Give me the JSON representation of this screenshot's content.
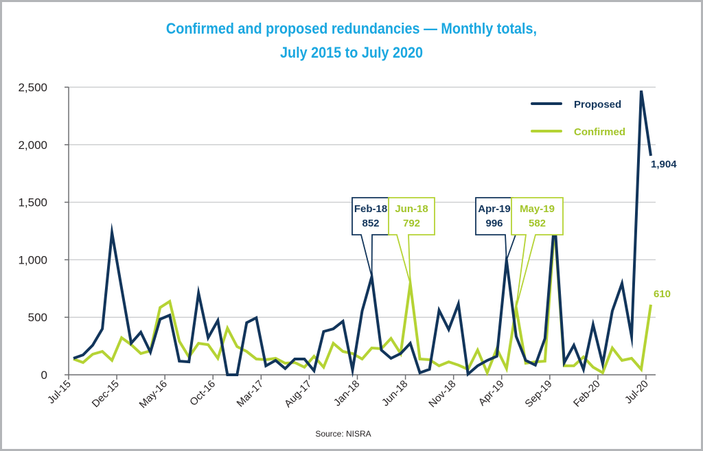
{
  "chart_data": {
    "type": "line",
    "title": "Confirmed and proposed redundancies — Monthly totals,",
    "subtitle": "July 2015 to July 2020",
    "xlabel": "",
    "ylabel": "",
    "ylim": [
      0,
      2500
    ],
    "yticks": [
      0,
      500,
      1000,
      1500,
      2000,
      2500
    ],
    "ytick_labels": [
      "0",
      "500",
      "1,000",
      "1,500",
      "2,000",
      "2,500"
    ],
    "xtick_labels": [
      "Jul-15",
      "Dec-15",
      "May-16",
      "Oct-16",
      "Mar-17",
      "Aug-17",
      "Jan-18",
      "Jun-18",
      "Nov-18",
      "Apr-19",
      "Sep-19",
      "Feb-20",
      "Jul-20"
    ],
    "grid": true,
    "legend": "top-right",
    "x": [
      "Jul-15",
      "Aug-15",
      "Sep-15",
      "Oct-15",
      "Nov-15",
      "Dec-15",
      "Jan-16",
      "Feb-16",
      "Mar-16",
      "Apr-16",
      "May-16",
      "Jun-16",
      "Jul-16",
      "Aug-16",
      "Sep-16",
      "Oct-16",
      "Nov-16",
      "Dec-16",
      "Jan-17",
      "Feb-17",
      "Mar-17",
      "Apr-17",
      "May-17",
      "Jun-17",
      "Jul-17",
      "Aug-17",
      "Sep-17",
      "Oct-17",
      "Nov-17",
      "Dec-17",
      "Jan-18",
      "Feb-18",
      "Mar-18",
      "Apr-18",
      "May-18",
      "Jun-18",
      "Jul-18",
      "Aug-18",
      "Sep-18",
      "Oct-18",
      "Nov-18",
      "Dec-18",
      "Jan-19",
      "Feb-19",
      "Mar-19",
      "Apr-19",
      "May-19",
      "Jun-19",
      "Jul-19",
      "Aug-19",
      "Sep-19",
      "Oct-19",
      "Nov-19",
      "Dec-19",
      "Jan-20",
      "Feb-20",
      "Mar-20",
      "Apr-20",
      "May-20",
      "Jun-20",
      "Jul-20"
    ],
    "series": [
      {
        "name": "Proposed",
        "color": "#12355b",
        "values": [
          143,
          173,
          257,
          400,
          1235,
          752,
          275,
          370,
          197,
          483,
          518,
          119,
          113,
          710,
          322,
          472,
          0,
          0,
          453,
          495,
          78,
          125,
          54,
          137,
          137,
          36,
          376,
          400,
          465,
          42,
          555,
          852,
          215,
          143,
          185,
          274,
          18,
          48,
          561,
          394,
          615,
          6,
          78,
          125,
          161,
          996,
          334,
          125,
          84,
          316,
          1350,
          107,
          257,
          48,
          436,
          95,
          555,
          794,
          334,
          2470,
          1904
        ]
      },
      {
        "name": "Confirmed",
        "color": "#b5d334",
        "values": [
          137,
          107,
          179,
          203,
          125,
          322,
          262,
          185,
          209,
          585,
          638,
          292,
          155,
          274,
          262,
          143,
          405,
          245,
          203,
          137,
          131,
          143,
          101,
          107,
          66,
          161,
          66,
          274,
          203,
          185,
          137,
          233,
          227,
          316,
          185,
          792,
          137,
          131,
          78,
          113,
          84,
          48,
          215,
          18,
          227,
          54,
          582,
          101,
          113,
          119,
          1300,
          78,
          78,
          155,
          66,
          18,
          233,
          125,
          143,
          48,
          610
        ]
      }
    ],
    "annotations": [
      {
        "series": "Proposed",
        "month": "Feb-18",
        "label": "Feb-18",
        "value_label": "852"
      },
      {
        "series": "Confirmed",
        "month": "Jun-18",
        "label": "Jun-18",
        "value_label": "792"
      },
      {
        "series": "Proposed",
        "month": "Apr-19",
        "label": "Apr-19",
        "value_label": "996"
      },
      {
        "series": "Confirmed",
        "month": "May-19",
        "label": "May-19",
        "value_label": "582"
      }
    ],
    "end_labels": {
      "Proposed": "1,904",
      "Confirmed": "610"
    },
    "source": "Source: NISRA"
  },
  "colors": {
    "title": "#1aa7e0",
    "proposed": "#12355b",
    "confirmed": "#b5d334",
    "grid": "#cfd0d2",
    "axis": "#6d6e71"
  }
}
